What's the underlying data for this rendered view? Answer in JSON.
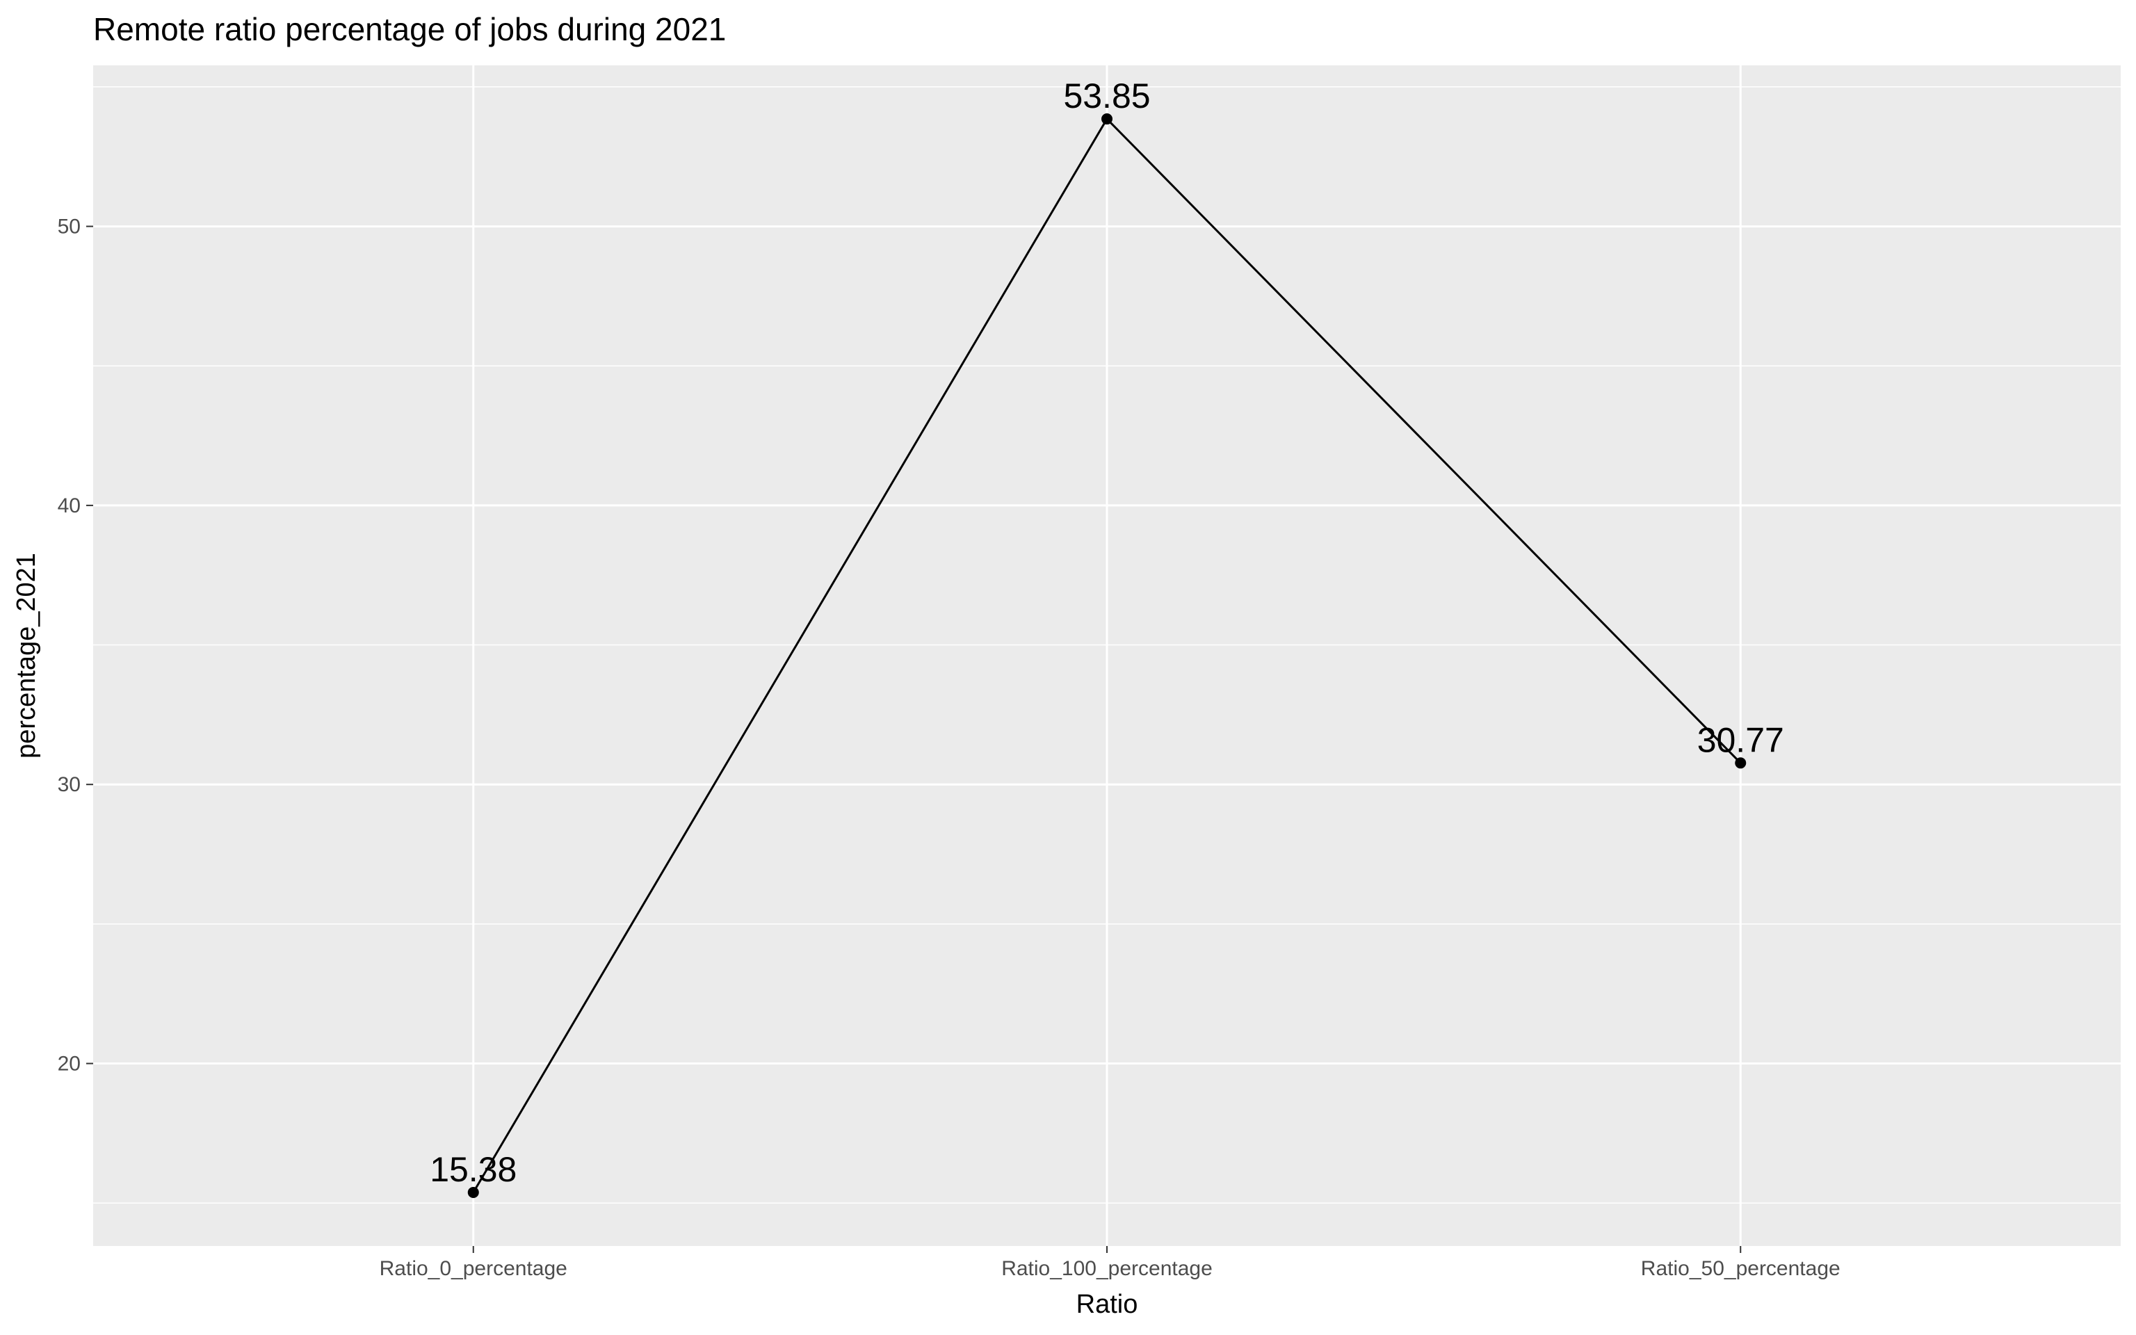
{
  "chart_data": {
    "type": "line",
    "title": "Remote ratio percentage of jobs during 2021",
    "xlabel": "Ratio",
    "ylabel": "percentage_2021",
    "categories": [
      "Ratio_0_percentage",
      "Ratio_100_percentage",
      "Ratio_50_percentage"
    ],
    "values": [
      15.38,
      53.85,
      30.77
    ],
    "data_labels": [
      "15.38",
      "53.85",
      "30.77"
    ],
    "ylim": [
      13.46,
      55.77
    ],
    "yticks": [
      20,
      30,
      40,
      50
    ],
    "ytick_labels": [
      "20",
      "30",
      "40",
      "50"
    ],
    "grid": true,
    "legend": "none",
    "colors": {
      "panel_background": "#ebebeb",
      "grid": "#ffffff",
      "line": "#000000",
      "point": "#000000",
      "tick_text": "#4d4d4d"
    }
  }
}
